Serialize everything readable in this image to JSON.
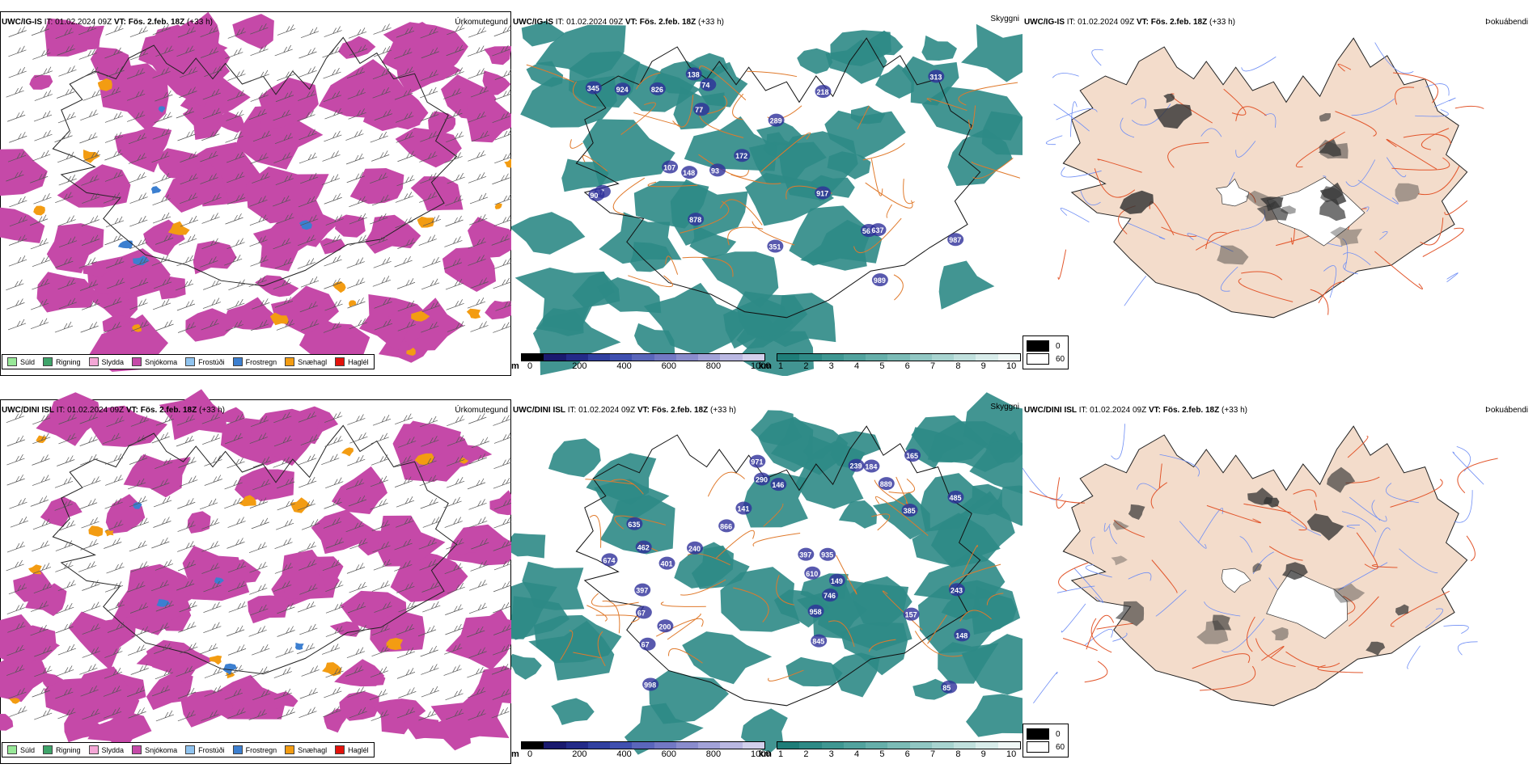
{
  "colors": {
    "snow": "#c549a8",
    "sleet": "#f4a7d6",
    "rain": "#3fa46a",
    "drizzle": "#98e898",
    "frost_drizzle": "#8fc3ef",
    "frost_rain": "#3c7fd0",
    "snow_pellets": "#f39c12",
    "hail": "#e3120b",
    "visibility_teal": "#2e8a86",
    "roads": "#e07a2c",
    "land": "#f3dccb",
    "rivers": "#6f8ef5"
  },
  "rows": [
    {
      "id": "igis",
      "panels": {
        "precip": {
          "model": "UWC/IG-IS",
          "it_label": "IT:",
          "it_value": "01.02.2024 09Z",
          "vt_label": "VT:",
          "vt_value": "Fös. 2.feb. 18Z",
          "lead": "(+33 h)",
          "kind": "Úrkomutegund"
        },
        "visibility": {
          "model": "UWC/IG-IS",
          "it_label": "IT:",
          "it_value": "01.02.2024 09Z",
          "vt_label": "VT:",
          "vt_value": "Fös. 2.feb. 18Z",
          "lead": "(+33 h)",
          "kind": "Skyggni",
          "labels": [
            "878",
            "351",
            "289",
            "569",
            "637",
            "917",
            "987",
            "313",
            "172",
            "74",
            "77",
            "826",
            "924",
            "107",
            "138",
            "218",
            "345",
            "37",
            "148",
            "90",
            "989",
            "93"
          ]
        },
        "fog": {
          "model": "UWC/IG-IS",
          "it_label": "IT:",
          "it_value": "01.02.2024 09Z",
          "vt_label": "VT:",
          "vt_value": "Fös. 2.feb. 18Z",
          "lead": "(+33 h)",
          "kind": "Þokuábendi"
        }
      }
    },
    {
      "id": "dini",
      "panels": {
        "precip": {
          "model": "UWC/DINI ISL",
          "it_label": "IT:",
          "it_value": "01.02.2024 09Z",
          "vt_label": "VT:",
          "vt_value": "Fös. 2.feb. 18Z",
          "lead": "(+33 h)",
          "kind": "Úrkomutegund"
        },
        "visibility": {
          "model": "UWC/DINI ISL",
          "it_label": "IT:",
          "it_value": "01.02.2024 09Z",
          "vt_label": "VT:",
          "vt_value": "Fös. 2.feb. 18Z",
          "lead": "(+33 h)",
          "kind": "Skyggni",
          "labels": [
            "610",
            "240",
            "998",
            "397",
            "385",
            "462",
            "635",
            "485",
            "971",
            "165",
            "243",
            "141",
            "239",
            "200",
            "866",
            "148",
            "85",
            "746",
            "674",
            "958",
            "397",
            "401",
            "290",
            "146",
            "889",
            "157",
            "184",
            "67",
            "67",
            "149",
            "845",
            "935"
          ]
        },
        "fog": {
          "model": "UWC/DINI ISL",
          "it_label": "IT:",
          "it_value": "01.02.2024 09Z",
          "vt_label": "VT:",
          "vt_value": "Fös. 2.feb. 18Z",
          "lead": "(+33 h)",
          "kind": "Þokuábendi"
        }
      }
    }
  ],
  "precip_legend": [
    {
      "label": "Súld",
      "color": "#98e898"
    },
    {
      "label": "Rigning",
      "color": "#3fa46a"
    },
    {
      "label": "Slydda",
      "color": "#f4a7d6"
    },
    {
      "label": "Snjókoma",
      "color": "#c549a8"
    },
    {
      "label": "Frostúði",
      "color": "#8fc3ef"
    },
    {
      "label": "Frostregn",
      "color": "#3c7fd0"
    },
    {
      "label": "Snæhagl",
      "color": "#f39c12"
    },
    {
      "label": "Haglél",
      "color": "#e3120b"
    }
  ],
  "visibility_scales": {
    "height": {
      "unit": "m",
      "ticks": [
        "0",
        "200",
        "400",
        "600",
        "800",
        "1000"
      ],
      "colors": [
        "#000000",
        "#1a1a6e",
        "#232a88",
        "#3140a0",
        "#4050b0",
        "#5a66bb",
        "#7278c4",
        "#8a8ccd",
        "#a2a2d8",
        "#bab8e2",
        "#d2d0ec"
      ]
    },
    "km": {
      "unit": "km",
      "ticks": [
        "1",
        "2",
        "3",
        "4",
        "5",
        "6",
        "7",
        "8",
        "9",
        "10"
      ],
      "colors": [
        "#1e7d78",
        "#2e8a86",
        "#3f9792",
        "#52a39e",
        "#66afaa",
        "#7bbbb6",
        "#91c7c3",
        "#a8d4d0",
        "#c0e0dd",
        "#d8ecea",
        "#f0f8f7"
      ]
    }
  },
  "fog_legend": [
    {
      "label": "0",
      "color": "#000000"
    },
    {
      "label": "60",
      "color": "#ffffff"
    }
  ]
}
